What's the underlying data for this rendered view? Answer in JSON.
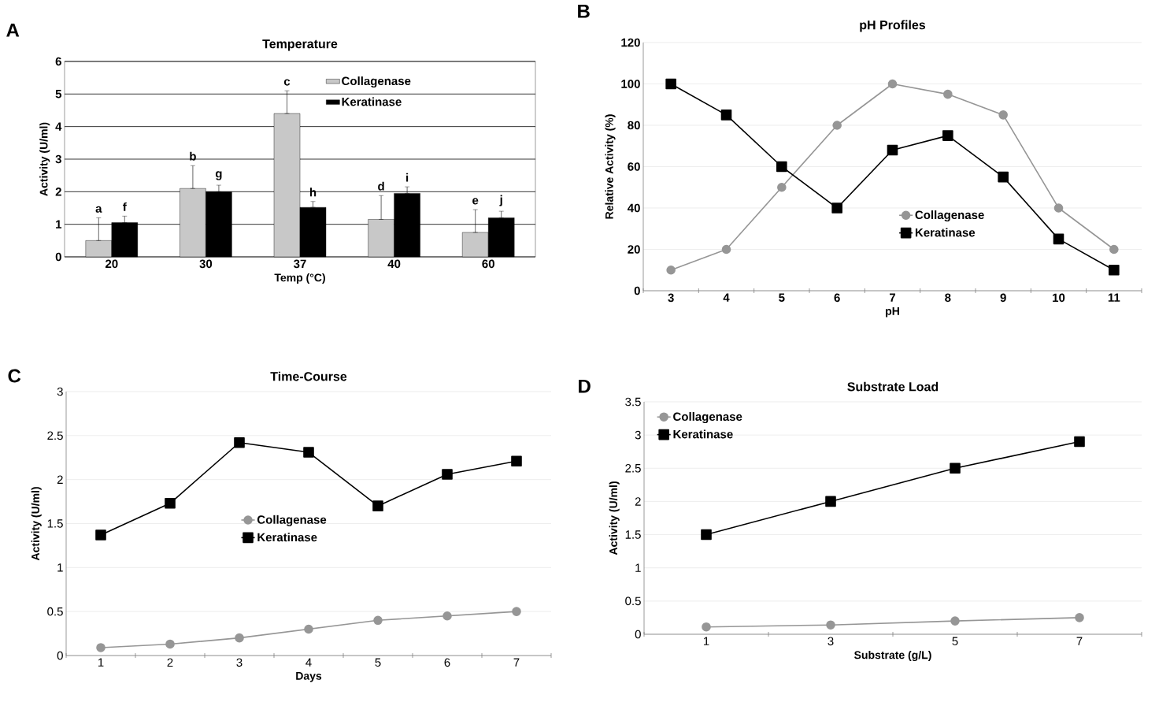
{
  "chart_data": [
    {
      "type": "bar",
      "title": "Temperature",
      "xlabel": "Temp (°C)",
      "ylabel": "Activity (U/ml)",
      "categories": [
        "20",
        "30",
        "37",
        "40",
        "60"
      ],
      "ylim": [
        0,
        6
      ],
      "yticks": [
        0,
        1,
        2,
        3,
        4,
        5,
        6
      ],
      "grid": "y",
      "legend": "top",
      "series": [
        {
          "name": "Collagenase",
          "color": "#c8c8c8",
          "values": [
            0.5,
            2.1,
            4.4,
            1.15,
            0.75
          ],
          "errors": [
            [
              0.5,
              1.2
            ],
            [
              2.1,
              2.8
            ],
            [
              4.4,
              5.1
            ],
            [
              1.15,
              1.88
            ],
            [
              0.75,
              1.45
            ]
          ]
        },
        {
          "name": "Keratinase",
          "color": "#000000",
          "values": [
            1.05,
            2.0,
            1.52,
            1.95,
            1.2
          ],
          "errors": [
            [
              1.05,
              1.25
            ],
            [
              2.0,
              2.2
            ],
            [
              1.52,
              1.7
            ],
            [
              1.95,
              2.15
            ],
            [
              1.2,
              1.4
            ]
          ]
        }
      ],
      "annotations": [
        "A",
        "a",
        "b",
        "c",
        "d",
        "e",
        "f",
        "g",
        "h",
        "i",
        "j"
      ]
    },
    {
      "type": "line",
      "title": "pH Profiles",
      "xlabel": "pH",
      "ylabel": "Relative Activity (%)",
      "categories": [
        "3",
        "4",
        "5",
        "6",
        "7",
        "8",
        "9",
        "10",
        "11"
      ],
      "ylim": [
        0,
        120
      ],
      "yticks": [
        0,
        20,
        40,
        60,
        80,
        100,
        120
      ],
      "grid": "y",
      "legend": "bottom",
      "series": [
        {
          "name": "Collagenase",
          "color": "#969696",
          "marker": "circle",
          "values": [
            10,
            20,
            50,
            80,
            100,
            95,
            85,
            40,
            20
          ]
        },
        {
          "name": "Keratinase",
          "color": "#000000",
          "marker": "square",
          "values": [
            100,
            85,
            60,
            40,
            68,
            75,
            55,
            25,
            10
          ]
        }
      ],
      "annotations": [
        "B"
      ]
    },
    {
      "type": "line",
      "title": "Time-Course",
      "xlabel": "Days",
      "ylabel": "Activity (U/ml)",
      "categories": [
        "1",
        "2",
        "3",
        "4",
        "5",
        "6",
        "7"
      ],
      "ylim": [
        0,
        3
      ],
      "yticks": [
        0,
        0.5,
        1,
        1.5,
        2,
        2.5,
        3
      ],
      "grid": "y",
      "legend": "center",
      "series": [
        {
          "name": "Collagenase",
          "color": "#969696",
          "marker": "circle",
          "values": [
            0.09,
            0.13,
            0.2,
            0.3,
            0.4,
            0.45,
            0.5
          ]
        },
        {
          "name": "Keratinase",
          "color": "#000000",
          "marker": "square",
          "values": [
            1.37,
            1.73,
            2.42,
            2.31,
            1.7,
            2.06,
            2.21
          ]
        }
      ],
      "annotations": [
        "C"
      ]
    },
    {
      "type": "line",
      "title": "Substrate Load",
      "xlabel": "Substrate (g/L)",
      "ylabel": "Activity (U/ml)",
      "categories": [
        "1",
        "3",
        "5",
        "7"
      ],
      "ylim": [
        0,
        3.5
      ],
      "yticks": [
        0,
        0.5,
        1,
        1.5,
        2,
        2.5,
        3,
        3.5
      ],
      "grid": "y",
      "legend": "top left",
      "series": [
        {
          "name": "Collagenase",
          "color": "#969696",
          "marker": "circle",
          "values": [
            0.11,
            0.14,
            0.2,
            0.25
          ]
        },
        {
          "name": "Keratinase",
          "color": "#000000",
          "marker": "square",
          "values": [
            1.5,
            2.0,
            2.5,
            2.9
          ]
        }
      ],
      "annotations": [
        "D"
      ]
    }
  ]
}
